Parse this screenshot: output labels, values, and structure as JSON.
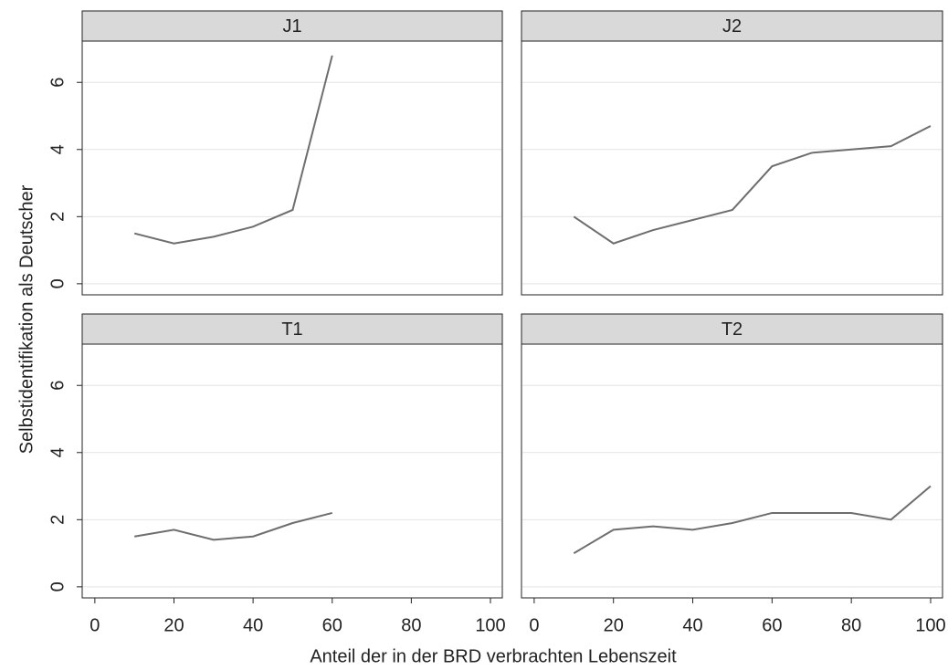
{
  "xlabel": "Anteil der in der BRD verbrachten Lebenszeit",
  "ylabel": "Selbstidentifikation als Deutscher",
  "chart_data": [
    {
      "type": "line",
      "title": "J1",
      "color": "#6e6e6e",
      "grid": true,
      "x": [
        10,
        20,
        30,
        40,
        50,
        60
      ],
      "values": [
        1.5,
        1.2,
        1.4,
        1.7,
        2.2,
        6.8
      ],
      "xlim": [
        -3.2,
        103
      ],
      "ylim": [
        -0.33,
        7.23
      ],
      "yticks": [
        0,
        2,
        4,
        6
      ]
    },
    {
      "type": "line",
      "title": "J2",
      "color": "#6e6e6e",
      "grid": true,
      "x": [
        10,
        20,
        30,
        40,
        50,
        60,
        70,
        80,
        90,
        100
      ],
      "values": [
        2.0,
        1.2,
        1.6,
        1.9,
        2.2,
        3.5,
        3.9,
        4.0,
        4.1,
        4.7
      ],
      "xlim": [
        -3.2,
        103
      ],
      "ylim": [
        -0.33,
        7.23
      ],
      "yticks": [
        0,
        2,
        4,
        6
      ]
    },
    {
      "type": "line",
      "title": "T1",
      "color": "#6e6e6e",
      "grid": true,
      "x": [
        10,
        20,
        30,
        40,
        50,
        60
      ],
      "values": [
        1.5,
        1.7,
        1.4,
        1.5,
        1.9,
        2.2
      ],
      "xlim": [
        -3.2,
        103
      ],
      "ylim": [
        -0.33,
        7.23
      ],
      "yticks": [
        0,
        2,
        4,
        6
      ],
      "xticks": [
        0,
        20,
        40,
        60,
        80,
        100
      ]
    },
    {
      "type": "line",
      "title": "T2",
      "color": "#6e6e6e",
      "grid": true,
      "x": [
        10,
        20,
        30,
        40,
        50,
        60,
        70,
        80,
        90,
        100
      ],
      "values": [
        1.0,
        1.7,
        1.8,
        1.7,
        1.9,
        2.2,
        2.2,
        2.2,
        2.0,
        3.0
      ],
      "xlim": [
        -3.2,
        103
      ],
      "ylim": [
        -0.33,
        7.23
      ],
      "yticks": [
        0,
        2,
        4,
        6
      ],
      "xticks": [
        0,
        20,
        40,
        60,
        80,
        100
      ]
    }
  ]
}
